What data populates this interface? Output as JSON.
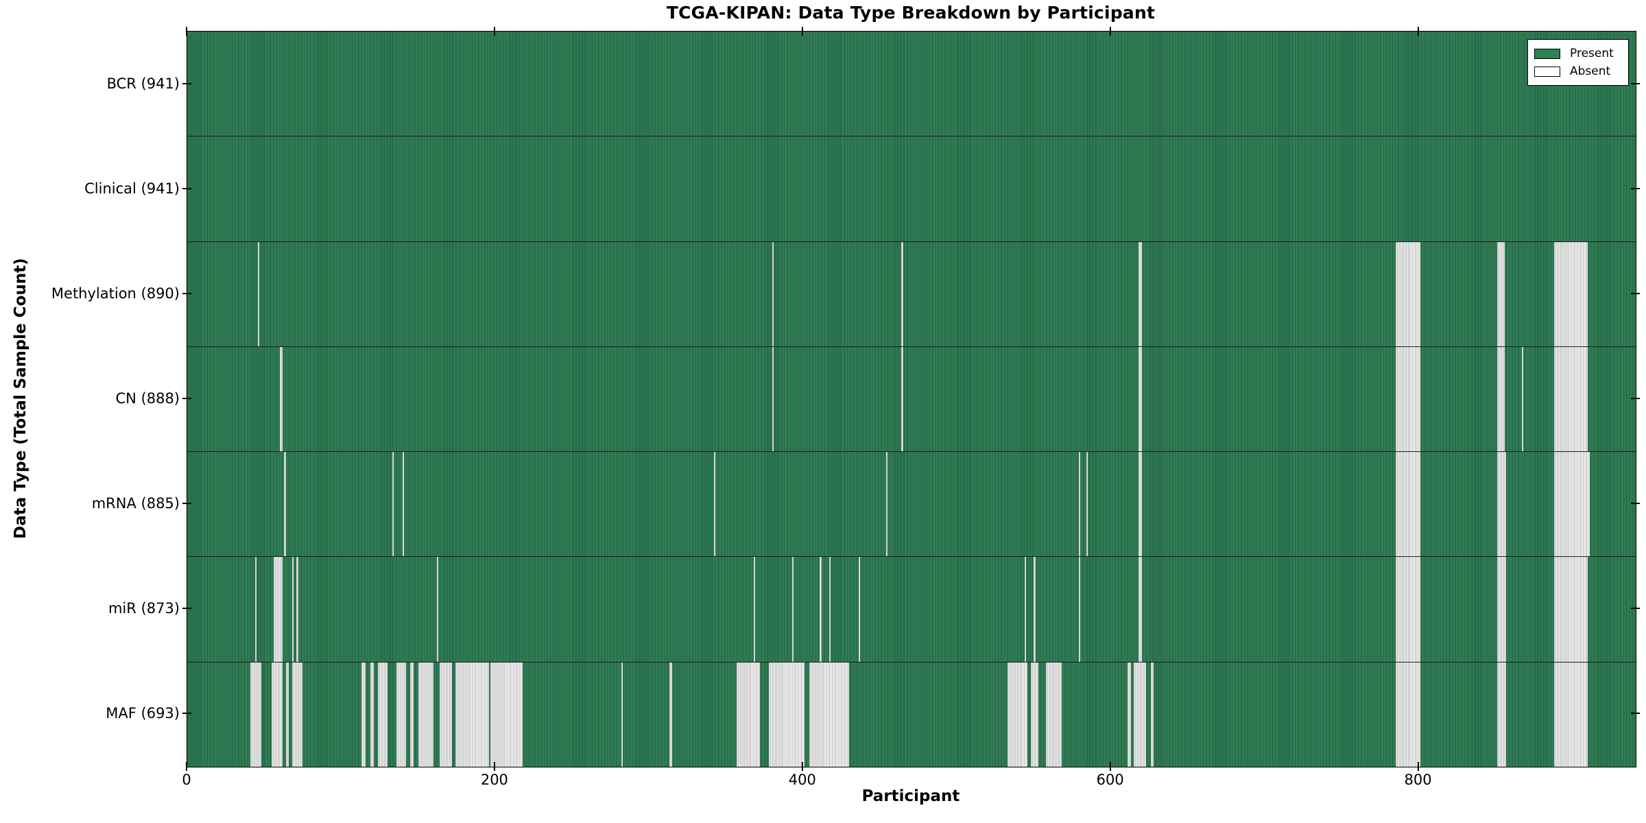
{
  "title": "TCGA-KIPAN: Data Type Breakdown by Participant",
  "axes": {
    "x_label": "Participant",
    "y_label": "Data Type (Total Sample Count)",
    "x_ticks": [
      "0",
      "200",
      "400",
      "600",
      "800"
    ],
    "x_tick_values": [
      0,
      200,
      400,
      600,
      800
    ],
    "x_min": 0,
    "x_max": 941
  },
  "legend": {
    "items": [
      {
        "label": "Present",
        "color": "#2e8355"
      },
      {
        "label": "Absent",
        "color": "#ffffff"
      }
    ]
  },
  "colors": {
    "present_fill": "#2e7d52",
    "present_stripe_dark": "#1d5f3d",
    "present_stripe_light": "#35825a",
    "absent_stripe_dark": "#bdbdbd",
    "absent_stripe_light": "#f1f1f1",
    "row_separator": "#1c1c1c",
    "axis_border": "#000000"
  },
  "chart_data": {
    "type": "heatmap",
    "title": "TCGA-KIPAN: Data Type Breakdown by Participant",
    "xlabel": "Participant",
    "ylabel": "Data Type (Total Sample Count)",
    "x_range": [
      0,
      941
    ],
    "grid": false,
    "legend_position": "upper right",
    "legend_entries": [
      "Present",
      "Absent"
    ],
    "cell_states": [
      "present",
      "absent"
    ],
    "rows": [
      {
        "label": "BCR (941)",
        "data_type": "BCR",
        "sample_count": 941,
        "absent_ranges": []
      },
      {
        "label": "Clinical (941)",
        "data_type": "Clinical",
        "sample_count": 941,
        "absent_ranges": []
      },
      {
        "label": "Methylation (890)",
        "data_type": "Methylation",
        "sample_count": 890,
        "absent_ranges": [
          [
            46,
            47
          ],
          [
            380,
            381
          ],
          [
            464,
            465
          ],
          [
            618,
            620
          ],
          [
            785,
            801
          ],
          [
            851,
            856
          ],
          [
            888,
            910
          ]
        ]
      },
      {
        "label": "CN (888)",
        "data_type": "CN",
        "sample_count": 888,
        "absent_ranges": [
          [
            60,
            62
          ],
          [
            380,
            381
          ],
          [
            464,
            465
          ],
          [
            618,
            620
          ],
          [
            785,
            801
          ],
          [
            851,
            856
          ],
          [
            867,
            868
          ],
          [
            888,
            910
          ]
        ]
      },
      {
        "label": "mRNA (885)",
        "data_type": "mRNA",
        "sample_count": 885,
        "absent_ranges": [
          [
            63,
            64
          ],
          [
            133,
            134
          ],
          [
            140,
            141
          ],
          [
            342,
            343
          ],
          [
            454,
            455
          ],
          [
            579,
            580
          ],
          [
            584,
            585
          ],
          [
            618,
            620
          ],
          [
            785,
            801
          ],
          [
            851,
            857
          ],
          [
            888,
            911
          ]
        ]
      },
      {
        "label": "miR (873)",
        "data_type": "miR",
        "sample_count": 873,
        "absent_ranges": [
          [
            44,
            45
          ],
          [
            56,
            62
          ],
          [
            68,
            69
          ],
          [
            71,
            72
          ],
          [
            162,
            163
          ],
          [
            368,
            369
          ],
          [
            393,
            394
          ],
          [
            411,
            412
          ],
          [
            417,
            418
          ],
          [
            436,
            437
          ],
          [
            544,
            545
          ],
          [
            550,
            551
          ],
          [
            579,
            580
          ],
          [
            618,
            620
          ],
          [
            785,
            801
          ],
          [
            851,
            857
          ],
          [
            888,
            910
          ]
        ]
      },
      {
        "label": "MAF (693)",
        "data_type": "MAF",
        "sample_count": 693,
        "absent_ranges": [
          [
            41,
            48
          ],
          [
            55,
            62
          ],
          [
            64,
            66
          ],
          [
            68,
            75
          ],
          [
            113,
            116
          ],
          [
            119,
            121
          ],
          [
            124,
            130
          ],
          [
            136,
            142
          ],
          [
            145,
            147
          ],
          [
            150,
            160
          ],
          [
            164,
            172
          ],
          [
            174,
            196
          ],
          [
            197,
            218
          ],
          [
            282,
            283
          ],
          [
            313,
            315
          ],
          [
            357,
            372
          ],
          [
            378,
            401
          ],
          [
            404,
            430
          ],
          [
            533,
            546
          ],
          [
            548,
            553
          ],
          [
            558,
            568
          ],
          [
            611,
            613
          ],
          [
            615,
            623
          ],
          [
            626,
            628
          ],
          [
            785,
            801
          ],
          [
            851,
            857
          ],
          [
            888,
            910
          ]
        ]
      }
    ]
  }
}
